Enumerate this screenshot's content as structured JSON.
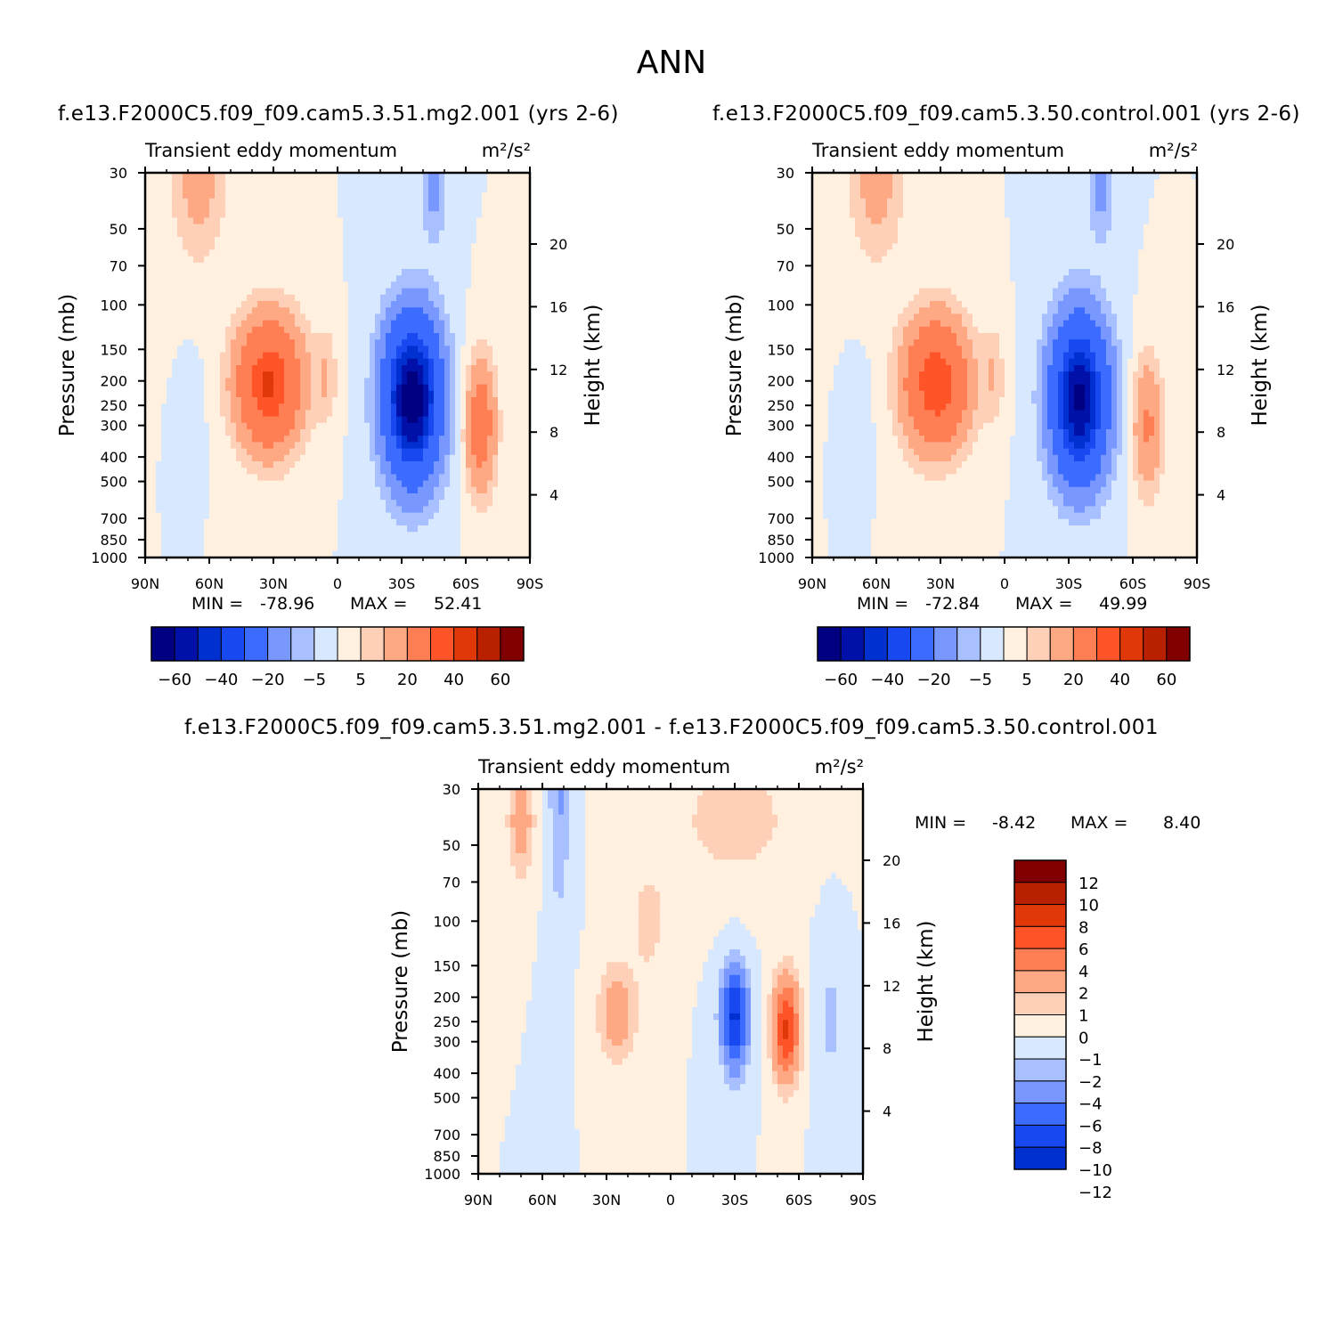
{
  "figure_title": "ANN",
  "chart_data": [
    {
      "type": "heatmap",
      "id": "panel-test",
      "title": "f.e13.F2000C5.f09_f09.cam5.3.51.mg2.001  (yrs 2-6)",
      "subtitle": "Transient eddy momentum",
      "units": "m²/s²",
      "xlabel": "",
      "ylabel": "Pressure (mb)",
      "y2label": "Height (km)",
      "xticks": [
        "90N",
        "60N",
        "30N",
        "0",
        "30S",
        "60S",
        "90S"
      ],
      "xlim": [
        90,
        -90
      ],
      "yticks": [
        30,
        50,
        70,
        100,
        150,
        200,
        250,
        300,
        400,
        500,
        700,
        850,
        1000
      ],
      "ylim": [
        30,
        1000
      ],
      "y2ticks": [
        4,
        8,
        12,
        16,
        20
      ],
      "min_label": "MIN =",
      "min_value": "-78.96",
      "max_label": "MAX =",
      "max_value": "52.41",
      "levels": [
        -70,
        -60,
        -50,
        -40,
        -30,
        -20,
        -10,
        -5,
        0,
        5,
        10,
        20,
        30,
        40,
        50,
        60,
        70
      ],
      "colorbar_labels": [
        "-60",
        "-40",
        "-20",
        "-5",
        "5",
        "20",
        "40",
        "60"
      ],
      "features": [
        {
          "lat": 32,
          "p": 205,
          "amp": 52.41,
          "wlat": 15,
          "wp": 0.58
        },
        {
          "lat": 5,
          "p": 190,
          "amp": 9,
          "wlat": 5,
          "wp": 0.45
        },
        {
          "lat": 65,
          "p": 30,
          "amp": 14,
          "wlat": 13,
          "wp": 0.8
        },
        {
          "lat": -35,
          "p": 235,
          "amp": -78.96,
          "wlat": 13,
          "wp": 0.72
        },
        {
          "lat": -67,
          "p": 300,
          "amp": 30,
          "wlat": 7,
          "wp": 0.6
        },
        {
          "lat": -45,
          "p": 35,
          "amp": -13,
          "wlat": 6,
          "wp": 0.45
        },
        {
          "lat": 68,
          "p": 280,
          "amp": -5,
          "wlat": 5,
          "wp": 0.45
        }
      ]
    },
    {
      "type": "heatmap",
      "id": "panel-control",
      "title": "f.e13.F2000C5.f09_f09.cam5.3.50.control.001  (yrs 2-6)",
      "subtitle": "Transient eddy momentum",
      "units": "m²/s²",
      "xlabel": "",
      "ylabel": "Pressure (mb)",
      "y2label": "Height (km)",
      "xticks": [
        "90N",
        "60N",
        "30N",
        "0",
        "30S",
        "60S",
        "90S"
      ],
      "xlim": [
        90,
        -90
      ],
      "yticks": [
        30,
        50,
        70,
        100,
        150,
        200,
        250,
        300,
        400,
        500,
        700,
        850,
        1000
      ],
      "ylim": [
        30,
        1000
      ],
      "y2ticks": [
        4,
        8,
        12,
        16,
        20
      ],
      "min_label": "MIN =",
      "min_value": "-72.84",
      "max_label": "MAX =",
      "max_value": "49.99",
      "levels": [
        -70,
        -60,
        -50,
        -40,
        -30,
        -20,
        -10,
        -5,
        0,
        5,
        10,
        20,
        30,
        40,
        50,
        60,
        70
      ],
      "colorbar_labels": [
        "-60",
        "-40",
        "-20",
        "-5",
        "5",
        "20",
        "40",
        "60"
      ],
      "features": [
        {
          "lat": 32,
          "p": 205,
          "amp": 49.99,
          "wlat": 15,
          "wp": 0.58
        },
        {
          "lat": 5,
          "p": 190,
          "amp": 9,
          "wlat": 5,
          "wp": 0.45
        },
        {
          "lat": 60,
          "p": 30,
          "amp": 14,
          "wlat": 13,
          "wp": 0.8
        },
        {
          "lat": -35,
          "p": 235,
          "amp": -72.84,
          "wlat": 13,
          "wp": 0.72
        },
        {
          "lat": -67,
          "p": 300,
          "amp": 22,
          "wlat": 7,
          "wp": 0.6
        },
        {
          "lat": -45,
          "p": 35,
          "amp": -13,
          "wlat": 6,
          "wp": 0.45
        },
        {
          "lat": 68,
          "p": 280,
          "amp": -5,
          "wlat": 5,
          "wp": 0.45
        }
      ]
    },
    {
      "type": "heatmap",
      "id": "panel-diff",
      "title": "f.e13.F2000C5.f09_f09.cam5.3.51.mg2.001 - f.e13.F2000C5.f09_f09.cam5.3.50.control.001",
      "subtitle": "Transient eddy momentum",
      "units": "m²/s²",
      "xlabel": "",
      "ylabel": "Pressure (mb)",
      "y2label": "Height (km)",
      "xticks": [
        "90N",
        "60N",
        "30N",
        "0",
        "30S",
        "60S",
        "90S"
      ],
      "xlim": [
        90,
        -90
      ],
      "yticks": [
        30,
        50,
        70,
        100,
        150,
        200,
        250,
        300,
        400,
        500,
        700,
        850,
        1000
      ],
      "ylim": [
        30,
        1000
      ],
      "y2ticks": [
        4,
        8,
        12,
        16,
        20
      ],
      "min_label": "MIN =",
      "min_value": "-8.42",
      "max_label": "MAX =",
      "max_value": "8.40",
      "levels": [
        -12,
        -10,
        -8,
        -6,
        -4,
        -2,
        -1,
        0,
        1,
        2,
        4,
        6,
        8,
        10,
        12
      ],
      "colorbar_labels": [
        "12",
        "10",
        "8",
        "6",
        "4",
        "2",
        "1",
        "0",
        "-1",
        "-2",
        "-4",
        "-6",
        "-8",
        "-10",
        "-12"
      ],
      "features": [
        {
          "lat": 70,
          "p": 40,
          "amp": 3,
          "wlat": 6,
          "wp": 0.5
        },
        {
          "lat": 52,
          "p": 28,
          "amp": -2.2,
          "wlat": 5,
          "wp": 1.2
        },
        {
          "lat": 25,
          "p": 230,
          "amp": 3,
          "wlat": 9,
          "wp": 0.45
        },
        {
          "lat": -30,
          "p": 240,
          "amp": -8.42,
          "wlat": 6,
          "wp": 0.45
        },
        {
          "lat": -54,
          "p": 265,
          "amp": 8.4,
          "wlat": 6,
          "wp": 0.45
        },
        {
          "lat": -30,
          "p": 40,
          "amp": 1.5,
          "wlat": 30,
          "wp": 0.6
        },
        {
          "lat": 10,
          "p": 100,
          "amp": 1.5,
          "wlat": 8,
          "wp": 0.5
        },
        {
          "lat": -75,
          "p": 250,
          "amp": -1.2,
          "wlat": 6,
          "wp": 0.8
        }
      ]
    }
  ],
  "colors": {
    "blue_red_17": [
      "#000080",
      "#0010a8",
      "#0030d0",
      "#1848f0",
      "#3c6cff",
      "#7898ff",
      "#a8c0ff",
      "#d8e8ff",
      "#fff0e0",
      "#ffd0b8",
      "#ffa884",
      "#ff7e54",
      "#ff5428",
      "#e03808",
      "#b82000",
      "#800000"
    ],
    "blue_red_14": [
      "#000080",
      "#0010a8",
      "#0030d0",
      "#1848f0",
      "#3c6cff",
      "#7898ff",
      "#a8c0ff",
      "#d8e8ff",
      "#fff0e0",
      "#ffd0b8",
      "#ffa884",
      "#ff7e54",
      "#ff5428",
      "#e03808",
      "#b82000",
      "#800000"
    ]
  }
}
